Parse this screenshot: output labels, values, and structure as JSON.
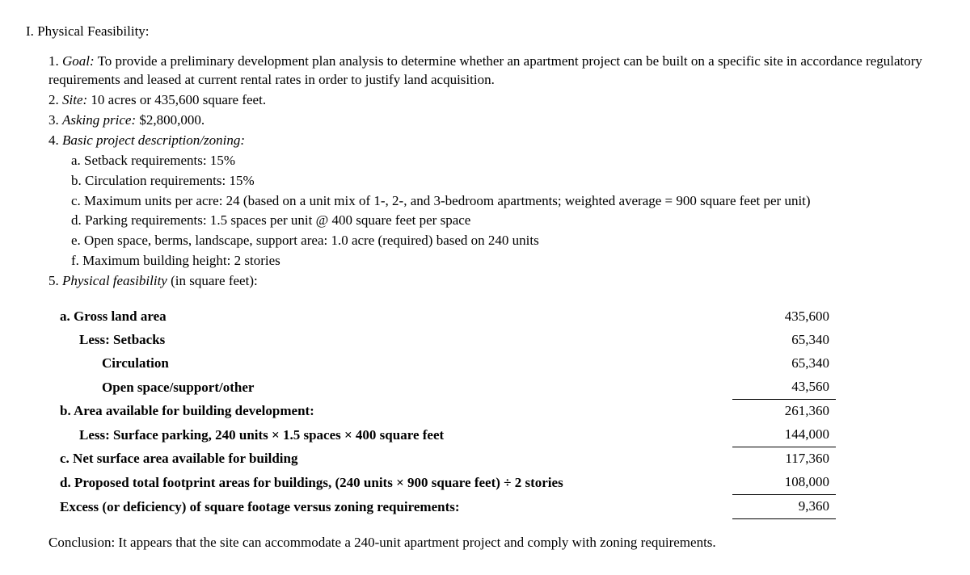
{
  "heading": "I. Physical Feasibility:",
  "items": {
    "goal_label": "Goal:",
    "goal_text": " To provide a preliminary development plan analysis to determine whether an apartment project can be built on a specific site in accordance regulatory requirements and leased at current rental rates in order to justify land acquisition.",
    "site_label": "Site:",
    "site_text": " 10 acres or 435,600 square feet.",
    "asking_label": "Asking price:",
    "asking_text": " $2,800,000.",
    "basic_label": "Basic project description/zoning:",
    "sub_a": "a. Setback requirements: 15%",
    "sub_b": "b. Circulation requirements: 15%",
    "sub_c": "c. Maximum units per acre: 24 (based on a unit mix of 1-, 2-, and 3-bedroom apartments; weighted average = 900 square feet per unit)",
    "sub_d": "d. Parking requirements: 1.5 spaces per unit @ 400 square feet per space",
    "sub_e": "e. Open space, berms, landscape, support area: 1.0 acre (required) based on 240 units",
    "sub_f": "f. Maximum building height: 2 stories",
    "phys_label": "Physical feasibility",
    "phys_text": " (in square feet):"
  },
  "table": {
    "rows": [
      {
        "label": "a. Gross land area",
        "value": "435,600",
        "indent": 0,
        "top": false,
        "bottom": false
      },
      {
        "label": "Less: Setbacks",
        "value": "65,340",
        "indent": 1,
        "top": false,
        "bottom": false
      },
      {
        "label": "Circulation",
        "value": "65,340",
        "indent": 2,
        "top": false,
        "bottom": false
      },
      {
        "label": "Open space/support/other",
        "value": "43,560",
        "indent": 2,
        "top": false,
        "bottom": true
      },
      {
        "label": "b. Area available for building development:",
        "value": "261,360",
        "indent": 0,
        "top": false,
        "bottom": false
      },
      {
        "label": "Less: Surface parking, 240 units × 1.5 spaces × 400 square feet",
        "value": "144,000",
        "indent": 1,
        "top": false,
        "bottom": true
      },
      {
        "label": "c. Net surface area available for building",
        "value": "117,360",
        "indent": 0,
        "top": false,
        "bottom": false
      },
      {
        "label": "d. Proposed total footprint areas for buildings,  (240 units × 900 square feet) ÷ 2 stories",
        "value": "108,000",
        "indent": 0,
        "top": false,
        "bottom": true
      },
      {
        "label": "Excess (or deficiency) of square footage versus zoning requirements:",
        "value": "9,360",
        "indent": 0,
        "top": false,
        "bottom": true
      }
    ]
  },
  "conclusion": "Conclusion: It appears that the site can accommodate a 240-unit apartment project and comply with zoning requirements."
}
